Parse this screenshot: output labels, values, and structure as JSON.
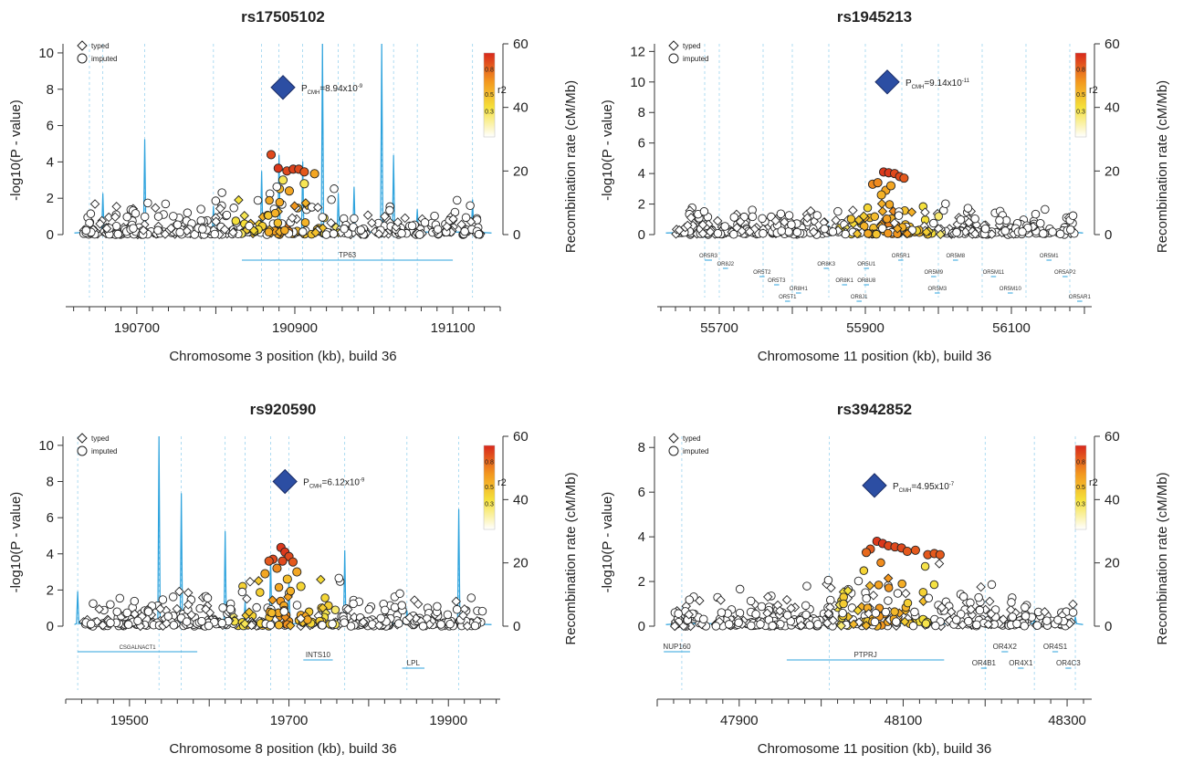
{
  "colors": {
    "recombination": "#2ea3dd",
    "lead_snp": "#2c4ea3",
    "r2_high": "#d8281c",
    "r2_mid": "#f39a1e",
    "r2_low": "#f5e13a",
    "r2_none": "#ffffff"
  },
  "chart_data": [
    {
      "type": "scatter",
      "title": "rs17505102",
      "xlabel": "Chromosome 3 position (kb), build 36",
      "ylabel_left": "-log10(P - value)",
      "ylabel_right": "Recombination rate (cM/Mb)",
      "xlim": [
        190610,
        191160
      ],
      "xticks": [
        "190700",
        "190900",
        "191100"
      ],
      "ylim_left": [
        0,
        10.5
      ],
      "yticks_left": [
        "0",
        "2",
        "4",
        "6",
        "8",
        "10"
      ],
      "ylim_right": [
        0,
        60
      ],
      "yticks_right": [
        "0",
        "20",
        "40",
        "60"
      ],
      "legend": {
        "typed": "typed",
        "imputed": "imputed"
      },
      "r2_label": "r2",
      "r2_ticks": [
        "0.8",
        "0.5",
        "0.3"
      ],
      "lead_snp": {
        "x": 190885,
        "y": 8.1,
        "p_label": "P",
        "p_sub": "CMH",
        "p_value": "=8.94x10",
        "p_exp": "-9"
      },
      "recomb_peaks": [
        [
          190640,
          3
        ],
        [
          190657,
          13
        ],
        [
          190710,
          30
        ],
        [
          190797,
          9
        ],
        [
          190858,
          20
        ],
        [
          190880,
          25
        ],
        [
          190910,
          23
        ],
        [
          190935,
          60
        ],
        [
          190955,
          13
        ],
        [
          190975,
          15
        ],
        [
          191010,
          60
        ],
        [
          191025,
          25
        ],
        [
          191055,
          8
        ],
        [
          191125,
          11
        ]
      ],
      "genes": [
        {
          "name": "TP63",
          "start": 190833,
          "end": 191100,
          "row": 0
        }
      ],
      "cluster": {
        "x": 190890,
        "y": 3.6
      },
      "top_snps": [
        [
          190879,
          3.65,
          0.95
        ],
        [
          190890,
          3.5,
          0.9
        ],
        [
          190898,
          3.6,
          0.92
        ],
        [
          190905,
          3.6,
          0.9
        ],
        [
          190912,
          3.45,
          0.85
        ],
        [
          190870,
          4.4,
          0.9
        ],
        [
          190925,
          3.35,
          0.6
        ],
        [
          190893,
          2.4,
          0.6
        ],
        [
          190885,
          3.0,
          0.3
        ],
        [
          190912,
          2.8,
          0.3
        ]
      ]
    },
    {
      "type": "scatter",
      "title": "rs1945213",
      "xlabel": "Chromosome 11 position (kb), build 36",
      "ylabel_left": "-log10(P - value)",
      "ylabel_right": "Recombination rate (cM/Mb)",
      "xlim": [
        55615,
        56210
      ],
      "xticks": [
        "55700",
        "55900",
        "56100"
      ],
      "ylim_left": [
        0,
        12.5
      ],
      "yticks_left": [
        "0",
        "2",
        "4",
        "6",
        "8",
        "10",
        "12"
      ],
      "ylim_right": [
        0,
        60
      ],
      "yticks_right": [
        "0",
        "20",
        "40",
        "60"
      ],
      "legend": {
        "typed": "typed",
        "imputed": "imputed"
      },
      "r2_label": "r2",
      "r2_ticks": [
        "0.8",
        "0.5",
        "0.3"
      ],
      "lead_snp": {
        "x": 55930,
        "y": 10.0,
        "p_label": "P",
        "p_sub": "CMH",
        "p_value": "=9.14x10",
        "p_exp": "-11"
      },
      "recomb_peaks": [
        [
          55680,
          3
        ],
        [
          55700,
          2
        ],
        [
          55760,
          2
        ],
        [
          55800,
          2
        ],
        [
          55850,
          3
        ],
        [
          55900,
          2
        ],
        [
          55950,
          3
        ],
        [
          56000,
          2
        ],
        [
          56060,
          2
        ],
        [
          56120,
          2
        ],
        [
          56180,
          4
        ]
      ],
      "genes": [
        {
          "name": "OR5R3",
          "start": 55680,
          "end": 55690,
          "row": 0
        },
        {
          "name": "OR8J2",
          "start": 55705,
          "end": 55712,
          "row": 1
        },
        {
          "name": "OR5T2",
          "start": 55755,
          "end": 55762,
          "row": 2
        },
        {
          "name": "OR5T3",
          "start": 55775,
          "end": 55782,
          "row": 3
        },
        {
          "name": "OR8H1",
          "start": 55805,
          "end": 55812,
          "row": 4
        },
        {
          "name": "OR5T1",
          "start": 55790,
          "end": 55797,
          "row": 5
        },
        {
          "name": "OR8K3",
          "start": 55843,
          "end": 55850,
          "row": 1
        },
        {
          "name": "OR8K1",
          "start": 55868,
          "end": 55875,
          "row": 3
        },
        {
          "name": "OR5U1",
          "start": 55898,
          "end": 55905,
          "row": 1
        },
        {
          "name": "OR8J1",
          "start": 55888,
          "end": 55895,
          "row": 5
        },
        {
          "name": "OR8U8",
          "start": 55898,
          "end": 55905,
          "row": 3
        },
        {
          "name": "OR5R1",
          "start": 55945,
          "end": 55952,
          "row": 0
        },
        {
          "name": "OR5M9",
          "start": 55990,
          "end": 55997,
          "row": 2
        },
        {
          "name": "OR5M3",
          "start": 55995,
          "end": 56002,
          "row": 4
        },
        {
          "name": "OR5M8",
          "start": 56020,
          "end": 56027,
          "row": 0
        },
        {
          "name": "OR5M11",
          "start": 56072,
          "end": 56079,
          "row": 2
        },
        {
          "name": "OR5M10",
          "start": 56095,
          "end": 56102,
          "row": 4
        },
        {
          "name": "OR5M1",
          "start": 56148,
          "end": 56155,
          "row": 0
        },
        {
          "name": "OR5AP2",
          "start": 56170,
          "end": 56177,
          "row": 2
        },
        {
          "name": "OR5AR1",
          "start": 56190,
          "end": 56197,
          "row": 5
        }
      ],
      "cluster": {
        "x": 55935,
        "y": 3.6
      },
      "top_snps": [
        [
          55925,
          4.1,
          0.95
        ],
        [
          55932,
          4.05,
          0.95
        ],
        [
          55940,
          4.0,
          0.9
        ],
        [
          55947,
          3.8,
          0.9
        ],
        [
          55953,
          3.7,
          0.85
        ],
        [
          55910,
          3.3,
          0.7
        ],
        [
          55917,
          3.4,
          0.7
        ],
        [
          55928,
          2.9,
          0.6
        ],
        [
          55935,
          3.2,
          0.6
        ],
        [
          55922,
          2.6,
          0.55
        ]
      ]
    },
    {
      "type": "scatter",
      "title": "rs920590",
      "xlabel": "Chromosome 8 position (kb), build 36",
      "ylabel_left": "-log10(P - value)",
      "ylabel_right": "Recombination rate (cM/Mb)",
      "xlim": [
        19420,
        19965
      ],
      "xticks": [
        "19500",
        "19700",
        "19900"
      ],
      "ylim_left": [
        0,
        10.5
      ],
      "yticks_left": [
        "0",
        "2",
        "4",
        "6",
        "8",
        "10"
      ],
      "ylim_right": [
        0,
        60
      ],
      "yticks_right": [
        "0",
        "20",
        "40",
        "60"
      ],
      "legend": {
        "typed": "typed",
        "imputed": "imputed"
      },
      "r2_label": "r2",
      "r2_ticks": [
        "0.8",
        "0.5",
        "0.3"
      ],
      "lead_snp": {
        "x": 19695,
        "y": 8.0,
        "p_label": "P",
        "p_sub": "CMH",
        "p_value": "=6.12x10",
        "p_exp": "-9"
      },
      "recomb_peaks": [
        [
          19435,
          11
        ],
        [
          19537,
          60
        ],
        [
          19565,
          42
        ],
        [
          19620,
          30
        ],
        [
          19645,
          8
        ],
        [
          19677,
          22
        ],
        [
          19700,
          15
        ],
        [
          19770,
          24
        ],
        [
          19848,
          5
        ],
        [
          19913,
          37
        ]
      ],
      "genes": [
        {
          "name": "CSGALNACT1",
          "start": 19435,
          "end": 19585,
          "row": 0
        },
        {
          "name": "INTS10",
          "start": 19718,
          "end": 19755,
          "row": 1
        },
        {
          "name": "LPL",
          "start": 19842,
          "end": 19870,
          "row": 2
        }
      ],
      "cluster": {
        "x": 19695,
        "y": 3.0
      },
      "top_snps": [
        [
          19690,
          4.35,
          0.95
        ],
        [
          19695,
          4.1,
          0.95
        ],
        [
          19700,
          3.85,
          0.9
        ],
        [
          19692,
          3.6,
          0.9
        ],
        [
          19705,
          3.55,
          0.85
        ],
        [
          19680,
          3.7,
          0.9
        ],
        [
          19675,
          3.6,
          0.85
        ],
        [
          19685,
          3.2,
          0.7
        ],
        [
          19710,
          3.0,
          0.6
        ],
        [
          19670,
          2.9,
          0.6
        ],
        [
          19698,
          2.6,
          0.5
        ],
        [
          19715,
          2.2,
          0.4
        ]
      ]
    },
    {
      "type": "scatter",
      "title": "rs3942852",
      "xlabel": "Chromosome 11 position (kb), build 36",
      "ylabel_left": "-log10(P - value)",
      "ylabel_right": "Recombination rate (cM/Mb)",
      "xlim": [
        47800,
        48330
      ],
      "xticks": [
        "47900",
        "48100",
        "48300"
      ],
      "ylim_left": [
        0,
        8.5
      ],
      "yticks_left": [
        "0",
        "2",
        "4",
        "6",
        "8"
      ],
      "ylim_right": [
        0,
        60
      ],
      "yticks_right": [
        "0",
        "20",
        "40",
        "60"
      ],
      "legend": {
        "typed": "typed",
        "imputed": "imputed"
      },
      "r2_label": "r2",
      "r2_ticks": [
        "0.8",
        "0.5",
        "0.3"
      ],
      "lead_snp": {
        "x": 48065,
        "y": 6.3,
        "p_label": "P",
        "p_sub": "CMH",
        "p_value": "=4.95x10",
        "p_exp": "-7"
      },
      "recomb_peaks": [
        [
          47830,
          3
        ],
        [
          48010,
          2
        ],
        [
          48200,
          3
        ],
        [
          48260,
          2
        ],
        [
          48310,
          3
        ]
      ],
      "genes": [
        {
          "name": "NUP160",
          "start": 47808,
          "end": 47840,
          "row": 0
        },
        {
          "name": "PTPRJ",
          "start": 47958,
          "end": 48150,
          "row": 1
        },
        {
          "name": "OR4X2",
          "start": 48220,
          "end": 48228,
          "row": 0
        },
        {
          "name": "OR4B1",
          "start": 48195,
          "end": 48202,
          "row": 2
        },
        {
          "name": "OR4X1",
          "start": 48240,
          "end": 48247,
          "row": 2
        },
        {
          "name": "OR4S1",
          "start": 48282,
          "end": 48289,
          "row": 0
        },
        {
          "name": "OR4C3",
          "start": 48298,
          "end": 48305,
          "row": 2
        }
      ],
      "cluster": {
        "x": 48080,
        "y": 3.5
      },
      "top_snps": [
        [
          48068,
          3.8,
          0.95
        ],
        [
          48075,
          3.7,
          0.95
        ],
        [
          48082,
          3.6,
          0.9
        ],
        [
          48090,
          3.55,
          0.9
        ],
        [
          48060,
          3.45,
          0.85
        ],
        [
          48098,
          3.5,
          0.9
        ],
        [
          48105,
          3.35,
          0.85
        ],
        [
          48130,
          3.2,
          0.85
        ],
        [
          48138,
          3.25,
          0.85
        ],
        [
          48145,
          3.2,
          0.85
        ],
        [
          48115,
          3.4,
          0.85
        ],
        [
          48055,
          3.3,
          0.8
        ]
      ]
    }
  ]
}
